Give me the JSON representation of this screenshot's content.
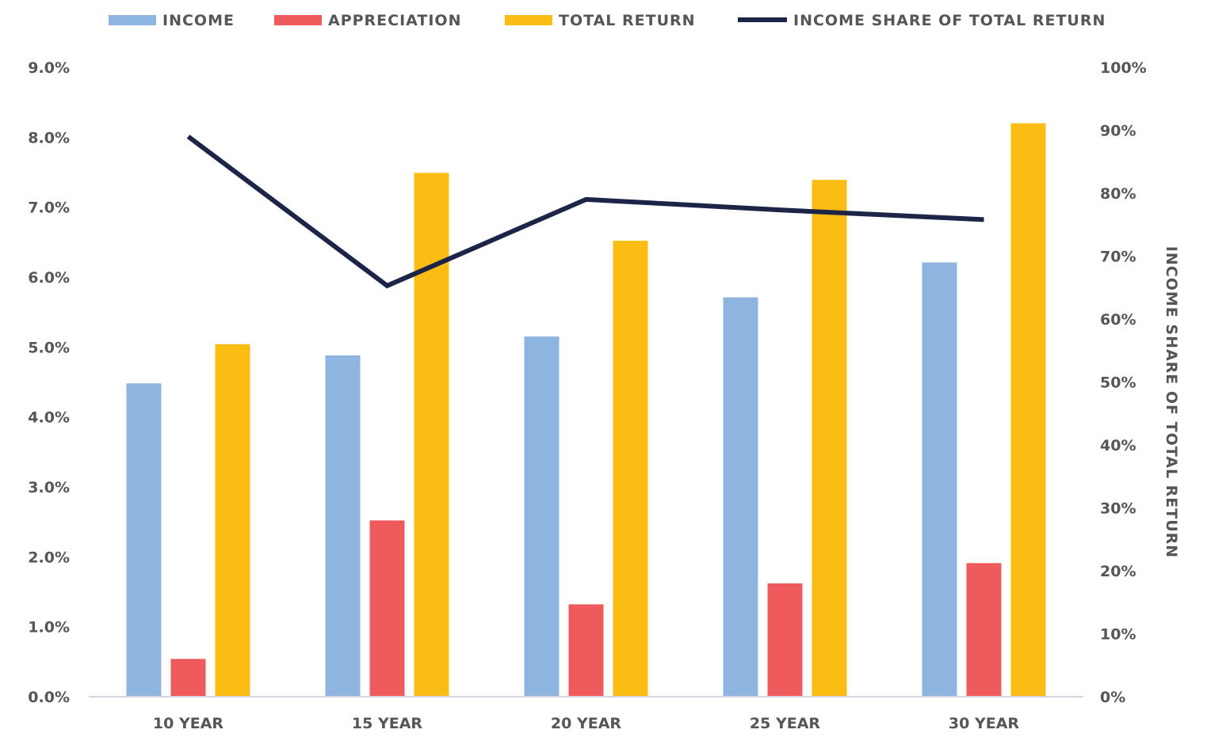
{
  "chart_data": {
    "type": "bar",
    "categories": [
      "10 YEAR",
      "15 YEAR",
      "20 YEAR",
      "25 YEAR",
      "30 YEAR"
    ],
    "series": [
      {
        "name": "INCOME",
        "type": "bar",
        "axis": "left",
        "color": "#8eb4e0",
        "values": [
          4.48,
          4.88,
          5.15,
          5.71,
          6.21
        ]
      },
      {
        "name": "APPRECIATION",
        "type": "bar",
        "axis": "left",
        "color": "#ef5b5d",
        "values": [
          0.54,
          2.52,
          1.32,
          1.62,
          1.91
        ]
      },
      {
        "name": "TOTAL RETURN",
        "type": "bar",
        "axis": "left",
        "color": "#fbbd13",
        "values": [
          5.04,
          7.49,
          6.52,
          7.39,
          8.2
        ]
      },
      {
        "name": "INCOME SHARE OF TOTAL RETURN",
        "type": "line",
        "axis": "right",
        "color": "#1c2548",
        "values": [
          89,
          65.3,
          79,
          77.3,
          75.8
        ]
      }
    ],
    "y_left": {
      "ylim": [
        0,
        9
      ],
      "ticks": [
        "0.0%",
        "1.0%",
        "2.0%",
        "3.0%",
        "4.0%",
        "5.0%",
        "6.0%",
        "7.0%",
        "8.0%",
        "9.0%"
      ]
    },
    "y_right": {
      "label": "INCOME SHARE OF TOTAL RETURN",
      "ylim": [
        0,
        100
      ],
      "ticks": [
        "0%",
        "10%",
        "20%",
        "30%",
        "40%",
        "50%",
        "60%",
        "70%",
        "80%",
        "90%",
        "100%"
      ]
    },
    "legend_position": "top",
    "grid": false,
    "axis_color": "#d3d3e0"
  }
}
